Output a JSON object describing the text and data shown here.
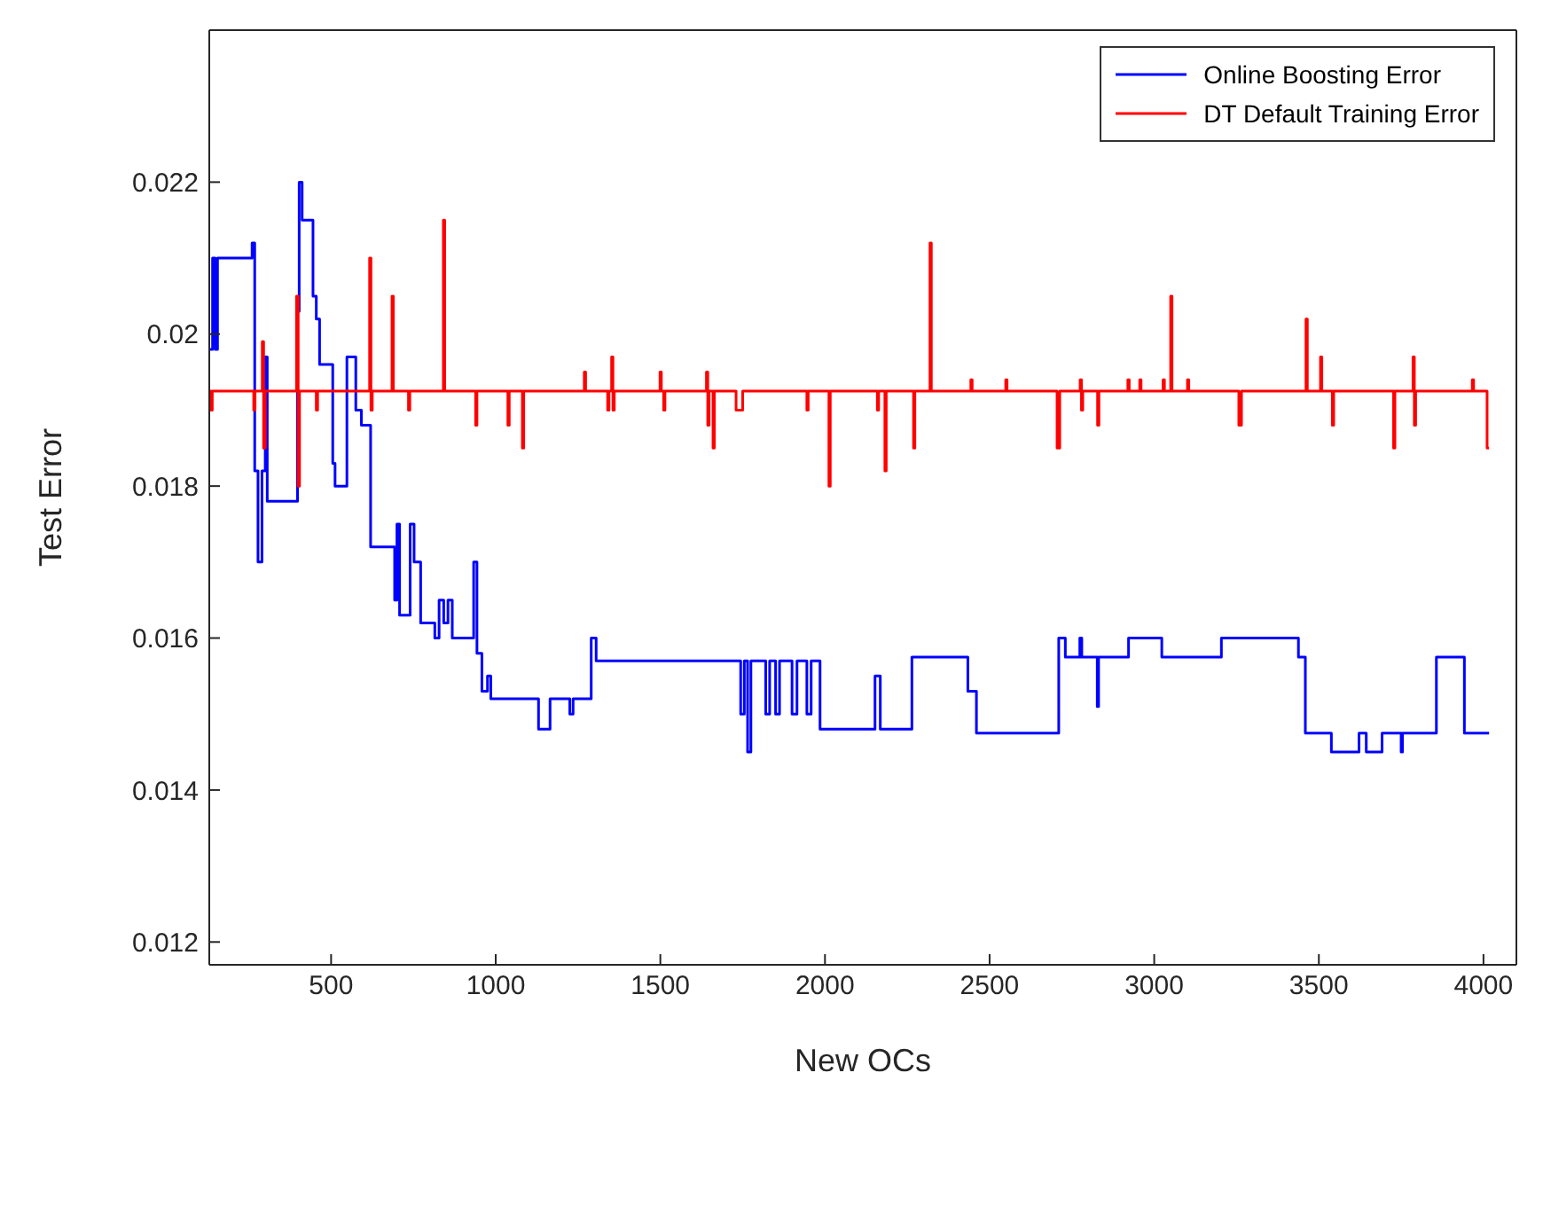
{
  "chart_data": {
    "type": "step",
    "xlabel": "New OCs",
    "ylabel": "Test Error",
    "xlim": [
      130,
      4100
    ],
    "ylim": [
      0.0117,
      0.024
    ],
    "xticks": [
      500,
      1000,
      1500,
      2000,
      2500,
      3000,
      3500,
      4000
    ],
    "yticks": [
      0.012,
      0.014,
      0.016,
      0.018,
      0.02,
      0.022
    ],
    "grid": false,
    "legend": "top right",
    "marker": "none",
    "line_style": "solid",
    "series": [
      {
        "name": "Online Boosting Error",
        "color": "#0000ff",
        "x": [
          130,
          140,
          148,
          155,
          260,
          268,
          278,
          290,
          300,
          306,
          398,
          403,
          412,
          445,
          455,
          465,
          505,
          512,
          548,
          575,
          592,
          620,
          693,
          700,
          708,
          740,
          752,
          772,
          815,
          828,
          842,
          855,
          868,
          933,
          943,
          958,
          975,
          985,
          1130,
          1165,
          1225,
          1235,
          1290,
          1305,
          1744,
          1755,
          1765,
          1775,
          1820,
          1832,
          1850,
          1862,
          1900,
          1915,
          1945,
          1958,
          1985,
          2152,
          2168,
          2264,
          2434,
          2460,
          2710,
          2730,
          2774,
          2780,
          2827,
          2831,
          2922,
          3023,
          3204,
          3438,
          3459,
          3538,
          3622,
          3644,
          3692,
          3750,
          3754,
          3857,
          3942,
          4017
        ],
        "values": [
          0.0198,
          0.021,
          0.0198,
          0.021,
          0.0212,
          0.0182,
          0.017,
          0.0182,
          0.0197,
          0.0178,
          0.0203,
          0.022,
          0.0215,
          0.0205,
          0.0202,
          0.0196,
          0.0183,
          0.018,
          0.0197,
          0.019,
          0.0188,
          0.0172,
          0.0165,
          0.0175,
          0.0163,
          0.0175,
          0.017,
          0.0162,
          0.016,
          0.0165,
          0.0162,
          0.0165,
          0.016,
          0.017,
          0.0158,
          0.0153,
          0.0155,
          0.0152,
          0.0148,
          0.0152,
          0.015,
          0.0152,
          0.016,
          0.0157,
          0.015,
          0.0157,
          0.0145,
          0.0157,
          0.015,
          0.0157,
          0.015,
          0.0157,
          0.015,
          0.0157,
          0.015,
          0.0157,
          0.0148,
          0.0155,
          0.0148,
          0.01575,
          0.0153,
          0.01475,
          0.016,
          0.01575,
          0.016,
          0.01575,
          0.0151,
          0.01575,
          0.016,
          0.01575,
          0.016,
          0.01575,
          0.01475,
          0.0145,
          0.01475,
          0.0145,
          0.01475,
          0.0145,
          0.01475,
          0.01575,
          0.01475,
          0.01475
        ]
      },
      {
        "name": "DT Default Training Error",
        "color": "#ff0000",
        "x": [
          130,
          135,
          139,
          265,
          269,
          291,
          295,
          300,
          395,
          400,
          404,
          455,
          459,
          617,
          621,
          625,
          685,
          689,
          735,
          739,
          841,
          845,
          939,
          943,
          1037,
          1041,
          1081,
          1085,
          1269,
          1273,
          1340,
          1344,
          1352,
          1356,
          1360,
          1499,
          1503,
          1510,
          1514,
          1640,
          1644,
          1648,
          1660,
          1664,
          1730,
          1750,
          1945,
          1949,
          2012,
          2016,
          2159,
          2163,
          2182,
          2186,
          2269,
          2273,
          2319,
          2323,
          2443,
          2447,
          2549,
          2553,
          2705,
          2713,
          2775,
          2779,
          2783,
          2828,
          2832,
          2920,
          2924,
          2956,
          2960,
          3027,
          3031,
          3050,
          3054,
          3101,
          3105,
          3257,
          3265,
          3461,
          3465,
          3505,
          3509,
          3541,
          3545,
          3727,
          3731,
          3786,
          3790,
          3794,
          3966,
          3970,
          4011,
          4017
        ],
        "values": [
          0.01925,
          0.019,
          0.01925,
          0.019,
          0.01925,
          0.0199,
          0.0185,
          0.01925,
          0.0205,
          0.018,
          0.01925,
          0.019,
          0.01925,
          0.021,
          0.019,
          0.01925,
          0.0205,
          0.01925,
          0.019,
          0.01925,
          0.0215,
          0.01925,
          0.0188,
          0.01925,
          0.0188,
          0.01925,
          0.0185,
          0.01925,
          0.0195,
          0.01925,
          0.019,
          0.01925,
          0.0197,
          0.019,
          0.01925,
          0.0195,
          0.01925,
          0.019,
          0.01925,
          0.0195,
          0.0188,
          0.01925,
          0.0185,
          0.01925,
          0.019,
          0.01925,
          0.019,
          0.01925,
          0.018,
          0.01925,
          0.019,
          0.01925,
          0.0182,
          0.01925,
          0.0185,
          0.01925,
          0.0212,
          0.01925,
          0.0194,
          0.01925,
          0.0194,
          0.01925,
          0.0185,
          0.01925,
          0.0194,
          0.019,
          0.01925,
          0.0188,
          0.01925,
          0.0194,
          0.01925,
          0.0194,
          0.01925,
          0.0194,
          0.01925,
          0.0205,
          0.01925,
          0.0194,
          0.01925,
          0.0188,
          0.01925,
          0.0202,
          0.01925,
          0.0197,
          0.01925,
          0.0188,
          0.01925,
          0.0185,
          0.01925,
          0.0197,
          0.0188,
          0.01925,
          0.0194,
          0.01925,
          0.0185,
          0.0185
        ]
      }
    ]
  }
}
